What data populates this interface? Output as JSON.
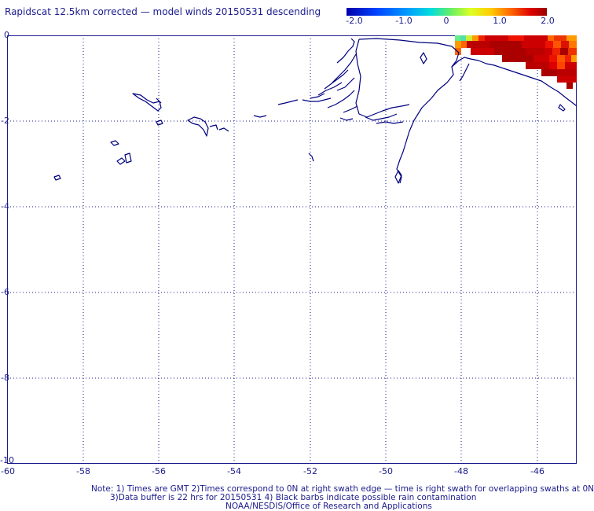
{
  "title": "Rapidscat 12.5km corrected — model winds 20150531 descending",
  "colorbar": {
    "labels": [
      "-2.0",
      "-1.0",
      "0",
      "1.0",
      "2.0"
    ],
    "colors": [
      "#0000aa",
      "#0055ff",
      "#00ccee",
      "#55ee88",
      "#ccff22",
      "#ffdd00",
      "#ff7700",
      "#ee1100",
      "#aa0000"
    ]
  },
  "y_axis": {
    "labels": [
      "0",
      "-2",
      "-4",
      "-6",
      "-8",
      "-10"
    ]
  },
  "x_axis": {
    "labels": [
      "-60",
      "-58",
      "-56",
      "-54",
      "-52",
      "-50",
      "-48",
      "-46"
    ]
  },
  "notes": {
    "line1": "Note: 1) Times are GMT 2)Times correspond to 0N at right swath edge — time is right swath for overlapping swaths at 0N",
    "line2": "3)Data buffer is 22 hrs for 20150531 4) Black barbs indicate possible rain contamination",
    "line3": "NOAA/NESDIS/Office of Research and Applications"
  },
  "style": {
    "coast_color": "#000080",
    "grid_color": "#1a1a8c"
  }
}
